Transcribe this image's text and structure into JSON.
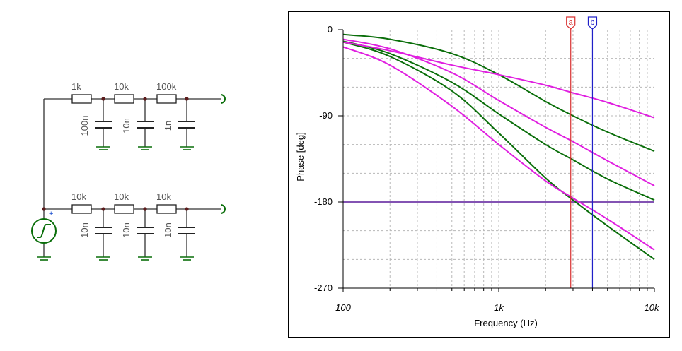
{
  "schematic": {
    "top_resistors": [
      "1k",
      "10k",
      "100k"
    ],
    "top_capacitors": [
      "100n",
      "10n",
      "1n"
    ],
    "bottom_resistors": [
      "10k",
      "10k",
      "10k"
    ],
    "bottom_capacitors": [
      "10n",
      "10n",
      "10n"
    ],
    "source_polarity": "+"
  },
  "chart": {
    "ylabel": "Phase [deg]",
    "xlabel": "Frequency (Hz)",
    "y_ticks": [
      "0",
      "-90",
      "-180",
      "-270"
    ],
    "x_ticks": [
      "100",
      "1k",
      "10k"
    ],
    "cursor_a_label": "a",
    "cursor_b_label": "b"
  },
  "colors": {
    "green": "#0a6e0a",
    "magenta": "#e01fe0",
    "cursor_a": "#d83030",
    "cursor_b": "#2020c8",
    "ref_line": "#5a1a9a",
    "grid": "#b8b8b8",
    "wire": "#333333",
    "gnd": "#0a6e0a",
    "node": "#5a1a1a"
  },
  "chart_data": {
    "type": "line",
    "xscale": "log",
    "xlim": [
      100,
      10000
    ],
    "ylim": [
      -270,
      0
    ],
    "xlabel": "Frequency (Hz)",
    "ylabel": "Phase [deg]",
    "x": [
      100,
      200,
      500,
      1000,
      2000,
      3000,
      5000,
      10000
    ],
    "series": [
      {
        "color": "green",
        "values": [
          -5,
          -10,
          -25,
          -47,
          -75,
          -90,
          -107,
          -127
        ]
      },
      {
        "color": "green",
        "values": [
          -13,
          -28,
          -64,
          -108,
          -155,
          -178,
          -205,
          -240
        ]
      },
      {
        "color": "green",
        "values": [
          -12,
          -25,
          -55,
          -88,
          -120,
          -136,
          -156,
          -178
        ]
      },
      {
        "color": "magenta",
        "values": [
          -13,
          -22,
          -37,
          -47,
          -58,
          -66,
          -76,
          -92
        ]
      },
      {
        "color": "magenta",
        "values": [
          -18,
          -37,
          -80,
          -120,
          -158,
          -176,
          -198,
          -230
        ]
      },
      {
        "color": "magenta",
        "values": [
          -10,
          -20,
          -45,
          -74,
          -102,
          -117,
          -137,
          -163
        ]
      }
    ],
    "reference_line": -180,
    "cursors": [
      {
        "label": "a",
        "x": 2900
      },
      {
        "label": "b",
        "x": 4000
      }
    ]
  }
}
